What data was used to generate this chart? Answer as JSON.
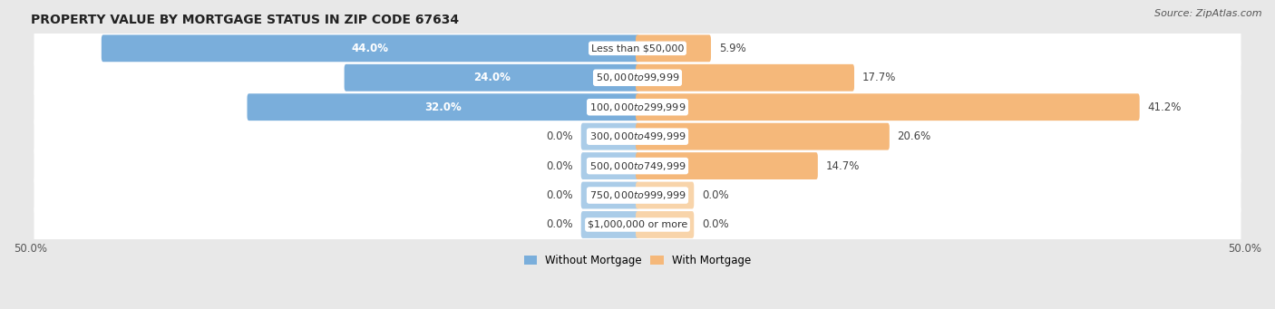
{
  "title": "PROPERTY VALUE BY MORTGAGE STATUS IN ZIP CODE 67634",
  "source": "Source: ZipAtlas.com",
  "categories": [
    "Less than $50,000",
    "$50,000 to $99,999",
    "$100,000 to $299,999",
    "$300,000 to $499,999",
    "$500,000 to $749,999",
    "$750,000 to $999,999",
    "$1,000,000 or more"
  ],
  "without_mortgage": [
    44.0,
    24.0,
    32.0,
    0.0,
    0.0,
    0.0,
    0.0
  ],
  "with_mortgage": [
    5.9,
    17.7,
    41.2,
    20.6,
    14.7,
    0.0,
    0.0
  ],
  "color_without": "#7aaedb",
  "color_without_stub": "#aacce8",
  "color_with": "#f5b87a",
  "color_with_stub": "#f8d4aa",
  "axis_max": 50.0,
  "stub_size": 4.5,
  "bg_color": "#e8e8e8",
  "row_bg_color": "#ffffff",
  "title_fontsize": 10,
  "label_fontsize": 8.5,
  "source_fontsize": 8,
  "tick_fontsize": 8.5,
  "category_fontsize": 8,
  "bar_height": 0.62,
  "legend_fontsize": 8.5
}
